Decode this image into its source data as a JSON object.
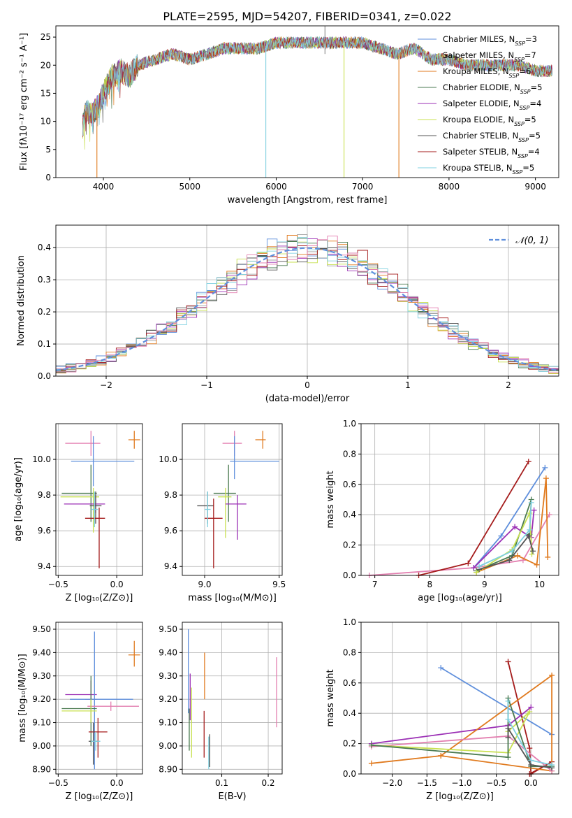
{
  "figure": {
    "title": "PLATE=2595, MJD=54207, FIBERID=0341, z=0.022"
  },
  "colors": {
    "Chabrier MILES": "#5f8fdc",
    "Salpeter MILES": "#a0a0a0",
    "Kroupa MILES": "#e07a1e",
    "Chabrier ELODIE": "#4a7a50",
    "Salpeter ELODIE": "#9b2fb5",
    "Kroupa ELODIE": "#c8e050",
    "Chabrier STELIB": "#555555",
    "Salpeter STELIB": "#a51c1c",
    "Kroupa STELIB": "#7fd0e0",
    "pink": "#e37fb0",
    "normal": "#5f8fdc"
  },
  "chart_data": [
    {
      "type": "line",
      "panel": "spectrum",
      "xlabel": "wavelength [Angstrom, rest frame]",
      "ylabel": "Flux [fλ10⁻¹⁷ erg cm⁻² s⁻¹ A⁻¹]",
      "xlim": [
        3450,
        9270
      ],
      "ylim": [
        0,
        27
      ],
      "xticks": [
        4000,
        5000,
        6000,
        7000,
        8000,
        9000
      ],
      "yticks": [
        0,
        5,
        10,
        15,
        20,
        25
      ],
      "legend_position": "top-right",
      "legend": [
        {
          "name": "Chabrier MILES",
          "nssp": "3"
        },
        {
          "name": "Salpeter MILES",
          "nssp": "7"
        },
        {
          "name": "Kroupa MILES",
          "nssp": "6"
        },
        {
          "name": "Chabrier ELODIE",
          "nssp": "5"
        },
        {
          "name": "Salpeter ELODIE",
          "nssp": "4"
        },
        {
          "name": "Kroupa ELODIE",
          "nssp": "5"
        },
        {
          "name": "Chabrier STELIB",
          "nssp": "5"
        },
        {
          "name": "Salpeter STELIB",
          "nssp": "4"
        },
        {
          "name": "Kroupa STELIB",
          "nssp": "5"
        }
      ],
      "continuum": {
        "x": [
          3760,
          3800,
          3850,
          3900,
          3950,
          4000,
          4100,
          4200,
          4300,
          4400,
          4600,
          4800,
          5000,
          5200,
          5400,
          5600,
          5800,
          6000,
          6200,
          6400,
          6600,
          6800,
          7000,
          7200,
          7400,
          7600,
          7800,
          8000,
          8200,
          8400,
          8600,
          8800,
          9000,
          9200
        ],
        "y": [
          9,
          12,
          11,
          12,
          13,
          15,
          18,
          19,
          18,
          20,
          21,
          22,
          21,
          22,
          23,
          23,
          23,
          24,
          24,
          24,
          24,
          24,
          24,
          23,
          22,
          23,
          21,
          21,
          20,
          20,
          20,
          20,
          19,
          19
        ]
      },
      "drops": [
        {
          "series": "Kroupa MILES",
          "x": 3925,
          "y": 0
        },
        {
          "series": "Kroupa STELIB",
          "x": 5880,
          "y": 0
        },
        {
          "series": "Kroupa ELODIE",
          "x": 6785,
          "y": 0
        },
        {
          "series": "Kroupa MILES",
          "x": 7420,
          "y": 0
        }
      ]
    },
    {
      "type": "histogram",
      "panel": "residuals",
      "xlabel": "(data-model)/error",
      "ylabel": "Normed distribution",
      "xlim": [
        -2.5,
        2.5
      ],
      "ylim": [
        0,
        0.47
      ],
      "xticks": [
        -2,
        -1,
        0,
        1,
        2
      ],
      "yticks": [
        0.0,
        0.1,
        0.2,
        0.3,
        0.4
      ],
      "bin_width": 0.1,
      "legend_position": "top-right",
      "curve_label": "𝒩(0, 1)",
      "normal": {
        "mean": 0,
        "sigma": 1
      }
    },
    {
      "type": "errorbar",
      "panel": "age_vs_Z",
      "xlabel": "Z [log₁₀(Z/Z⊙)]",
      "ylabel": "age  [log₁₀(age/yr)]",
      "xlim": [
        -0.52,
        0.22
      ],
      "ylim": [
        9.35,
        10.2
      ],
      "xticks": [
        -0.5,
        0.0
      ],
      "yticks": [
        9.4,
        9.6,
        9.8,
        10.0
      ],
      "points": [
        {
          "color": "pink",
          "x": -0.22,
          "xerr": [
            0.22,
            0.08
          ],
          "y": 10.09,
          "yerr": [
            0.07,
            0.07
          ]
        },
        {
          "color": "Kroupa MILES",
          "x": 0.15,
          "xerr": [
            0.05,
            0.05
          ],
          "y": 10.11,
          "yerr": [
            0.05,
            0.05
          ]
        },
        {
          "color": "Chabrier MILES",
          "x": -0.2,
          "xerr": [
            0.19,
            0.35
          ],
          "y": 9.99,
          "yerr": [
            0.14,
            0.14
          ]
        },
        {
          "color": "Chabrier ELODIE",
          "x": -0.22,
          "xerr": [
            0.25,
            0.05
          ],
          "y": 9.81,
          "yerr": [
            0.16,
            0.16
          ]
        },
        {
          "color": "Kroupa ELODIE",
          "x": -0.2,
          "xerr": [
            0.28,
            0.05
          ],
          "y": 9.79,
          "yerr": [
            0.2,
            0.05
          ]
        },
        {
          "color": "Salpeter ELODIE",
          "x": -0.18,
          "xerr": [
            0.27,
            0.08
          ],
          "y": 9.75,
          "yerr": [
            0.05,
            0.05
          ]
        },
        {
          "color": "Chabrier STELIB",
          "x": -0.18,
          "xerr": [
            0.05,
            0.05
          ],
          "y": 9.74,
          "yerr": [
            0.1,
            0.08
          ]
        },
        {
          "color": "Salpeter STELIB",
          "x": -0.15,
          "xerr": [
            0.12,
            0.05
          ],
          "y": 9.67,
          "yerr": [
            0.28,
            0.06
          ]
        },
        {
          "color": "Kroupa STELIB",
          "x": -0.19,
          "xerr": [
            0.03,
            0.03
          ],
          "y": 9.72,
          "yerr": [
            0.1,
            0.1
          ]
        }
      ]
    },
    {
      "type": "errorbar",
      "panel": "age_vs_mass",
      "xlabel": "mass [log₁₀(M/M⊙)]",
      "ylabel": "",
      "xlim": [
        8.85,
        9.52
      ],
      "ylim": [
        9.35,
        10.2
      ],
      "xticks": [
        9.0,
        9.5
      ],
      "yticks": [
        9.4,
        9.6,
        9.8,
        10.0
      ],
      "points": [
        {
          "color": "pink",
          "x": 9.2,
          "xerr": [
            0.08,
            0.05
          ],
          "y": 10.09,
          "yerr": [
            0.07,
            0.07
          ]
        },
        {
          "color": "Kroupa MILES",
          "x": 9.39,
          "xerr": [
            0.05,
            0.02
          ],
          "y": 10.11,
          "yerr": [
            0.05,
            0.05
          ]
        },
        {
          "color": "Chabrier MILES",
          "x": 9.2,
          "xerr": [
            0.03,
            0.3
          ],
          "y": 9.99,
          "yerr": [
            0.1,
            0.14
          ]
        },
        {
          "color": "Chabrier ELODIE",
          "x": 9.16,
          "xerr": [
            0.1,
            0.05
          ],
          "y": 9.81,
          "yerr": [
            0.16,
            0.16
          ]
        },
        {
          "color": "Kroupa ELODIE",
          "x": 9.14,
          "xerr": [
            0.05,
            0.04
          ],
          "y": 9.79,
          "yerr": [
            0.23,
            0.05
          ]
        },
        {
          "color": "Salpeter ELODIE",
          "x": 9.22,
          "xerr": [
            0.08,
            0.06
          ],
          "y": 9.75,
          "yerr": [
            0.2,
            0.05
          ]
        },
        {
          "color": "Chabrier STELIB",
          "x": 9.02,
          "xerr": [
            0.07,
            0.04
          ],
          "y": 9.74,
          "yerr": [
            0.1,
            0.08
          ]
        },
        {
          "color": "Salpeter STELIB",
          "x": 9.06,
          "xerr": [
            0.06,
            0.06
          ],
          "y": 9.67,
          "yerr": [
            0.28,
            0.11
          ]
        },
        {
          "color": "Kroupa STELIB",
          "x": 9.02,
          "xerr": [
            0.02,
            0.02
          ],
          "y": 9.72,
          "yerr": [
            0.1,
            0.1
          ]
        }
      ]
    },
    {
      "type": "line",
      "panel": "weights_vs_age",
      "xlabel": "age  [log₁₀(age/yr)]",
      "ylabel": "mass weight",
      "xlim": [
        6.75,
        10.35
      ],
      "ylim": [
        0,
        1.0
      ],
      "xticks": [
        7,
        8,
        9,
        10
      ],
      "yticks": [
        0.0,
        0.2,
        0.4,
        0.6,
        0.8,
        1.0
      ],
      "series": [
        {
          "color": "pink",
          "x": [
            6.9,
            8.8,
            9.7,
            10.18
          ],
          "y": [
            0.0,
            0.05,
            0.1,
            0.4
          ]
        },
        {
          "color": "Salpeter STELIB",
          "x": [
            7.8,
            8.7,
            9.8
          ],
          "y": [
            0.0,
            0.08,
            0.75
          ]
        },
        {
          "color": "Chabrier MILES",
          "x": [
            8.8,
            9.3,
            10.1
          ],
          "y": [
            0.05,
            0.26,
            0.71
          ]
        },
        {
          "color": "Kroupa MILES",
          "x": [
            8.85,
            9.6,
            9.95,
            10.12,
            10.15
          ],
          "y": [
            0.02,
            0.13,
            0.07,
            0.64,
            0.12
          ]
        },
        {
          "color": "Salpeter ELODIE",
          "x": [
            8.8,
            9.55,
            9.85,
            9.9
          ],
          "y": [
            0.05,
            0.32,
            0.25,
            0.43
          ]
        },
        {
          "color": "Chabrier ELODIE",
          "x": [
            8.85,
            9.5,
            9.85,
            9.82
          ],
          "y": [
            0.03,
            0.13,
            0.5,
            0.27
          ]
        },
        {
          "color": "Kroupa ELODIE",
          "x": [
            8.85,
            9.5,
            9.82,
            9.86
          ],
          "y": [
            0.02,
            0.17,
            0.41,
            0.14
          ]
        },
        {
          "color": "Chabrier STELIB",
          "x": [
            8.9,
            9.45,
            9.8,
            9.88
          ],
          "y": [
            0.04,
            0.1,
            0.26,
            0.16
          ]
        },
        {
          "color": "Kroupa STELIB",
          "x": [
            8.9,
            9.5,
            9.82,
            9.85
          ],
          "y": [
            0.06,
            0.16,
            0.3,
            0.48
          ]
        }
      ]
    },
    {
      "type": "errorbar",
      "panel": "mass_vs_Z",
      "xlabel": "Z [log₁₀(Z/Z⊙)]",
      "ylabel": "mass [log₁₀(M/M⊙)]",
      "xlim": [
        -0.52,
        0.22
      ],
      "ylim": [
        8.88,
        9.53
      ],
      "xticks": [
        -0.5,
        0.0
      ],
      "yticks": [
        8.9,
        9.0,
        9.1,
        9.2,
        9.3,
        9.4,
        9.5
      ],
      "points": [
        {
          "color": "Kroupa MILES",
          "x": 0.15,
          "xerr": [
            0.05,
            0.05
          ],
          "y": 9.39,
          "yerr": [
            0.05,
            0.06
          ]
        },
        {
          "color": "pink",
          "x": -0.22,
          "xerr": [
            0.05,
            0.05
          ],
          "y": 9.2,
          "yerr": [
            0.08,
            0.08
          ]
        },
        {
          "color": "Salpeter ELODIE",
          "x": -0.22,
          "xerr": [
            0.22,
            0.05
          ],
          "y": 9.22,
          "yerr": [
            0.06,
            0.06
          ]
        },
        {
          "color": "Chabrier MILES",
          "x": -0.19,
          "xerr": [
            0.21,
            0.33
          ],
          "y": 9.2,
          "yerr": [
            0.3,
            0.29
          ]
        },
        {
          "color": "pink",
          "x": -0.05,
          "xerr": [
            0.2,
            0.24
          ],
          "y": 9.17,
          "yerr": [
            0.02,
            0.02
          ]
        },
        {
          "color": "Chabrier ELODIE",
          "x": -0.22,
          "xerr": [
            0.25,
            0.05
          ],
          "y": 9.16,
          "yerr": [
            0.16,
            0.14
          ]
        },
        {
          "color": "Kroupa ELODIE",
          "x": -0.22,
          "xerr": [
            0.25,
            0.05
          ],
          "y": 9.15,
          "yerr": [
            0.05,
            0.05
          ]
        },
        {
          "color": "Salpeter STELIB",
          "x": -0.16,
          "xerr": [
            0.08,
            0.08
          ],
          "y": 9.06,
          "yerr": [
            0.11,
            0.06
          ]
        },
        {
          "color": "Chabrier STELIB",
          "x": -0.2,
          "xerr": [
            0.04,
            0.04
          ],
          "y": 9.02,
          "yerr": [
            0.1,
            0.08
          ]
        },
        {
          "color": "Kroupa STELIB",
          "x": -0.18,
          "xerr": [
            0.04,
            0.04
          ],
          "y": 9.02,
          "yerr": [
            0.04,
            0.04
          ]
        }
      ]
    },
    {
      "type": "errorbar",
      "panel": "mass_vs_EBV",
      "xlabel": "E(B-V)",
      "ylabel": "",
      "xlim": [
        0.015,
        0.23
      ],
      "ylim": [
        8.88,
        9.53
      ],
      "xticks": [
        0.1,
        0.2
      ],
      "yticks": [
        8.9,
        9.0,
        9.1,
        9.2,
        9.3,
        9.4,
        9.5
      ],
      "points": [
        {
          "color": "Chabrier MILES",
          "x": 0.028,
          "y": 9.32,
          "yerr": [
            0.18,
            0.18
          ]
        },
        {
          "color": "Salpeter ELODIE",
          "x": 0.032,
          "y": 9.21,
          "yerr": [
            0.1,
            0.1
          ]
        },
        {
          "color": "Kroupa ELODIE",
          "x": 0.035,
          "y": 9.1,
          "yerr": [
            0.15,
            0.15
          ]
        },
        {
          "color": "Chabrier ELODIE",
          "x": 0.03,
          "y": 9.07,
          "yerr": [
            0.09,
            0.09
          ]
        },
        {
          "color": "Kroupa MILES",
          "x": 0.063,
          "y": 9.3,
          "yerr": [
            0.1,
            0.1
          ]
        },
        {
          "color": "Salpeter STELIB",
          "x": 0.062,
          "y": 9.05,
          "yerr": [
            0.1,
            0.1
          ]
        },
        {
          "color": "Kroupa STELIB",
          "x": 0.072,
          "y": 8.97,
          "yerr": [
            0.07,
            0.07
          ]
        },
        {
          "color": "Chabrier STELIB",
          "x": 0.074,
          "y": 8.98,
          "yerr": [
            0.07,
            0.07
          ]
        },
        {
          "color": "pink",
          "x": 0.218,
          "y": 9.23,
          "yerr": [
            0.15,
            0.15
          ]
        }
      ]
    },
    {
      "type": "line",
      "panel": "weights_vs_Z",
      "xlabel": "Z [log₁₀(Z/Z⊙)]",
      "ylabel": "mass weight",
      "xlim": [
        -2.45,
        0.4
      ],
      "ylim": [
        0,
        1.0
      ],
      "xticks": [
        -2.0,
        -1.5,
        -1.0,
        -0.5,
        0.0
      ],
      "yticks": [
        0.0,
        0.2,
        0.4,
        0.6,
        0.8,
        1.0
      ],
      "series": [
        {
          "color": "Chabrier MILES",
          "x": [
            -1.3,
            0.3
          ],
          "y": [
            0.7,
            0.26
          ]
        },
        {
          "color": "Salpeter STELIB",
          "x": [
            -0.33,
            -0.02,
            0.0,
            0.3,
            -0.02
          ],
          "y": [
            0.74,
            0.17,
            0.0,
            0.08,
            0.0
          ]
        },
        {
          "color": "Salpeter ELODIE",
          "x": [
            -2.3,
            -0.33,
            0.0,
            -0.33
          ],
          "y": [
            0.2,
            0.32,
            0.44,
            0.32
          ]
        },
        {
          "color": "Kroupa MILES",
          "x": [
            -2.3,
            -1.3,
            0.3,
            0.3,
            -1.3
          ],
          "y": [
            0.07,
            0.12,
            0.65,
            0.02,
            0.12
          ]
        },
        {
          "color": "pink",
          "x": [
            -2.3,
            -0.33,
            0.3
          ],
          "y": [
            0.18,
            0.25,
            0.02
          ]
        },
        {
          "color": "Kroupa ELODIE",
          "x": [
            -2.3,
            -0.33,
            -0.02,
            -0.33
          ],
          "y": [
            0.19,
            0.14,
            0.41,
            0.28
          ]
        },
        {
          "color": "Chabrier ELODIE",
          "x": [
            -2.3,
            -0.33,
            -0.33,
            0.0,
            0.3
          ],
          "y": [
            0.19,
            0.11,
            0.5,
            0.05,
            0.05
          ]
        },
        {
          "color": "Chabrier STELIB",
          "x": [
            -0.33,
            -0.33,
            0.0,
            0.3
          ],
          "y": [
            0.24,
            0.3,
            0.06,
            0.04
          ]
        },
        {
          "color": "Kroupa STELIB",
          "x": [
            -0.33,
            -0.33,
            0.0,
            0.3
          ],
          "y": [
            0.48,
            0.36,
            0.09,
            0.06
          ]
        }
      ]
    }
  ]
}
